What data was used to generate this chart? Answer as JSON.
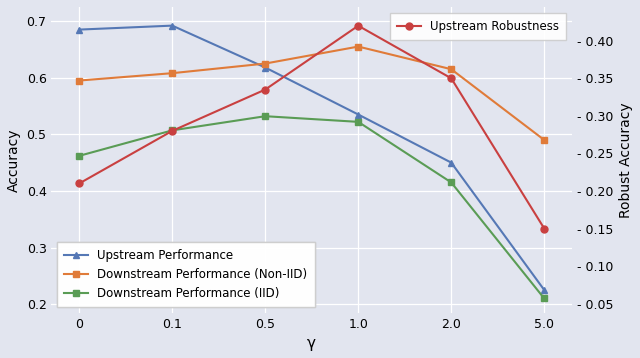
{
  "x_positions": [
    0,
    1,
    2,
    3,
    4,
    5
  ],
  "x_labels": [
    "0",
    "0.1",
    "0.5",
    "1.0",
    "2.0",
    "5.0"
  ],
  "upstream_performance": [
    0.685,
    0.692,
    0.618,
    0.535,
    0.45,
    0.225
  ],
  "downstream_noniid": [
    0.595,
    0.608,
    0.625,
    0.655,
    0.615,
    0.49
  ],
  "downstream_iid": [
    0.462,
    0.507,
    0.532,
    0.522,
    0.415,
    0.21
  ],
  "upstream_robustness": [
    0.21,
    0.28,
    0.335,
    0.42,
    0.35,
    0.15
  ],
  "color_blue": "#5578b5",
  "color_orange": "#e07b39",
  "color_green": "#5a9c55",
  "color_red": "#c94040",
  "background_color": "#e2e5ef",
  "left_ylim": [
    0.185,
    0.725
  ],
  "right_ylim": [
    0.038,
    0.445
  ],
  "left_yticks": [
    0.2,
    0.3,
    0.4,
    0.5,
    0.6,
    0.7
  ],
  "right_yticks": [
    0.05,
    0.1,
    0.15,
    0.2,
    0.25,
    0.3,
    0.35,
    0.4
  ],
  "xlabel": "γ",
  "ylabel_left": "Accuracy",
  "ylabel_right": "Robust Accuracy",
  "legend_upstream_perf": "Upstream Performance",
  "legend_downstream_noniid": "Downstream Performance (Non-IID)",
  "legend_downstream_iid": "Downstream Performance (IID)",
  "legend_upstream_robust": "Upstream Robustness"
}
